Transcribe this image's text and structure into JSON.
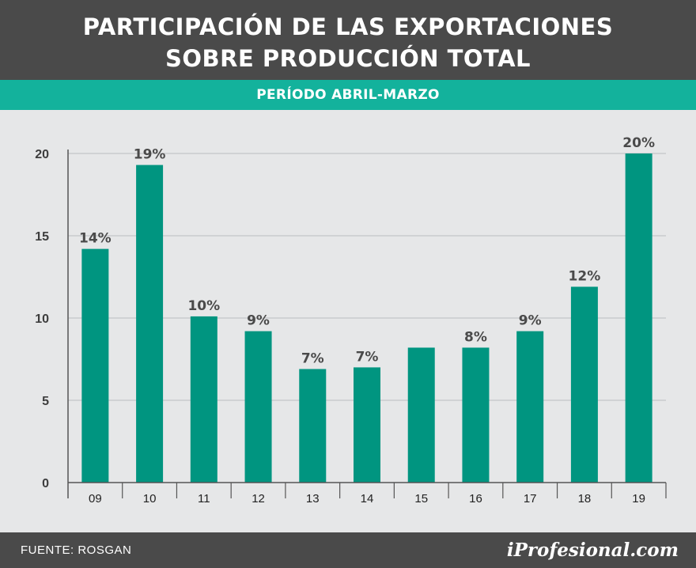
{
  "header": {
    "title_line1": "PARTICIPACIÓN DE LAS EXPORTACIONES",
    "title_line2": "SOBRE PRODUCCIÓN TOTAL",
    "subtitle": "PERÍODO ABRIL-MARZO"
  },
  "footer": {
    "source": "FUENTE: ROSGAN",
    "brand": "iProfesional.com"
  },
  "colors": {
    "header_bg": "#4a4a4a",
    "accent_band": "#13b29c",
    "bar": "#009580",
    "background": "#e6e7e8"
  },
  "chart_data": {
    "type": "bar",
    "categories": [
      "09",
      "10",
      "11",
      "12",
      "13",
      "14",
      "15",
      "16",
      "17",
      "18",
      "19"
    ],
    "values": [
      14.2,
      19.3,
      10.1,
      9.2,
      6.9,
      7.0,
      8.2,
      8.2,
      9.2,
      11.9,
      20.0
    ],
    "data_labels": [
      "14%",
      "19%",
      "10%",
      "9%",
      "7%",
      "7%",
      "",
      "8%",
      "9%",
      "12%",
      "20%"
    ],
    "ylim": [
      0,
      20
    ],
    "yticks": [
      0,
      5,
      10,
      15,
      20
    ],
    "grid": true,
    "xlabel": "",
    "ylabel": ""
  }
}
